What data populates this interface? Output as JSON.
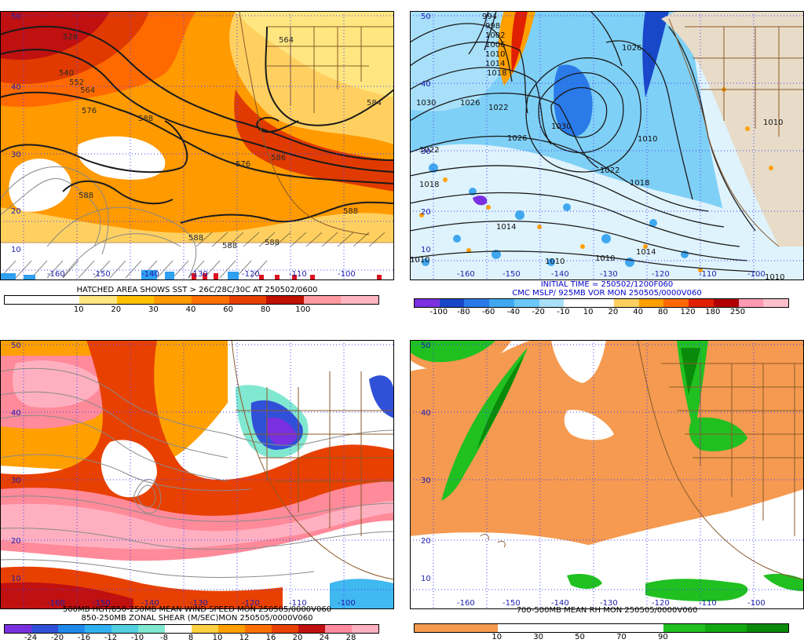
{
  "panels": [
    {
      "id": "tl",
      "caption_lines": [
        "HATCHED AREA SHOWS SST > 26C/28C/30C AT 250502/0600"
      ],
      "caption_color": "#000000",
      "lat_labels": [
        "50",
        "40",
        "30",
        "20",
        "10"
      ],
      "lon_labels": [
        "-160",
        "-150",
        "-140",
        "-130",
        "-120",
        "-110",
        "-100"
      ],
      "contour_labels": [
        "528",
        "540",
        "552",
        "564",
        "576",
        "588",
        "588",
        "586",
        "584",
        "576",
        "564",
        "588",
        "588",
        "588",
        "588"
      ],
      "colorbar": {
        "colors": [
          "#ffffff",
          "#ffffff",
          "#ffe680",
          "#ffc000",
          "#ff9a00",
          "#ff7000",
          "#e84000",
          "#c01000",
          "#ff9aa0",
          "#ffb6c0"
        ],
        "ticks": [
          "10",
          "20",
          "30",
          "40",
          "60",
          "80",
          "100"
        ]
      }
    },
    {
      "id": "tr",
      "caption_lines": [
        "INITIAL TIME = 250502/1200F060",
        "CMC MSLP/ 925MB VOR MON 250505/0000V060"
      ],
      "caption_color": "#0000c8",
      "lat_labels": [
        "50",
        "40",
        "30",
        "20",
        "10"
      ],
      "lon_labels": [
        "-160",
        "-150",
        "-140",
        "-130",
        "-120",
        "-110",
        "-100"
      ],
      "contour_labels": [
        "994",
        "998",
        "1002",
        "1006",
        "1010",
        "1014",
        "1018",
        "1022",
        "1026",
        "1030",
        "1030",
        "1026",
        "1022",
        "1018",
        "1018",
        "1014",
        "1010",
        "1010",
        "1010",
        "1014",
        "1010",
        "1026",
        "1010",
        "1010",
        "1022"
      ],
      "colorbar": {
        "colors": [
          "#7a30e0",
          "#1848c8",
          "#2a7ae8",
          "#40a8f0",
          "#6cc8f8",
          "#a8e0fa",
          "#ffffff",
          "#ffffff",
          "#ffd060",
          "#ffa000",
          "#ff6800",
          "#e02000",
          "#b00000",
          "#ff9ab0",
          "#ffc0cc"
        ],
        "ticks": [
          "-100",
          "-80",
          "-60",
          "-40",
          "-20",
          "-10",
          "10",
          "20",
          "40",
          "80",
          "120",
          "180",
          "250"
        ]
      }
    },
    {
      "id": "bl",
      "caption_lines": [
        "500MB HGT/850-250MB MEAN WIND SPEED MON 250505/0000V060",
        "850-250MB ZONAL SHEAR (M/SEC)MON 250505/0000V060"
      ],
      "caption_color": "#000000",
      "lat_labels": [
        "50",
        "40",
        "30",
        "20",
        "10"
      ],
      "lon_labels": [
        "-160",
        "-150",
        "-140",
        "-130",
        "-120",
        "-110",
        "-100"
      ],
      "contour_labels": [],
      "colorbar": {
        "colors": [
          "#7a30e0",
          "#3050d8",
          "#2088e8",
          "#30b0f0",
          "#50d0e0",
          "#80e8d0",
          "#ffffff",
          "#ffd040",
          "#ffa000",
          "#ff7000",
          "#e84000",
          "#c01010",
          "#ff8aa0",
          "#ffb0c0"
        ],
        "ticks": [
          "-24",
          "-20",
          "-16",
          "-12",
          "-10",
          "-8",
          "8",
          "10",
          "12",
          "16",
          "20",
          "24",
          "28"
        ]
      }
    },
    {
      "id": "br",
      "caption_lines": [
        "700-500MB MEAN RH MON 250505/0000V060"
      ],
      "caption_color": "#000000",
      "lat_labels": [
        "50",
        "40",
        "30",
        "20",
        "10"
      ],
      "lon_labels": [
        "-160",
        "-150",
        "-140",
        "-130",
        "-120",
        "-110",
        "-100"
      ],
      "contour_labels": [],
      "colorbar": {
        "colors": [
          "#f59a50",
          "#f59a50",
          "#ffffff",
          "#ffffff",
          "#ffffff",
          "#ffffff",
          "#20c020",
          "#12a812",
          "#0a8a0a"
        ],
        "ticks": [
          "10",
          "30",
          "50",
          "70",
          "90"
        ]
      }
    }
  ]
}
